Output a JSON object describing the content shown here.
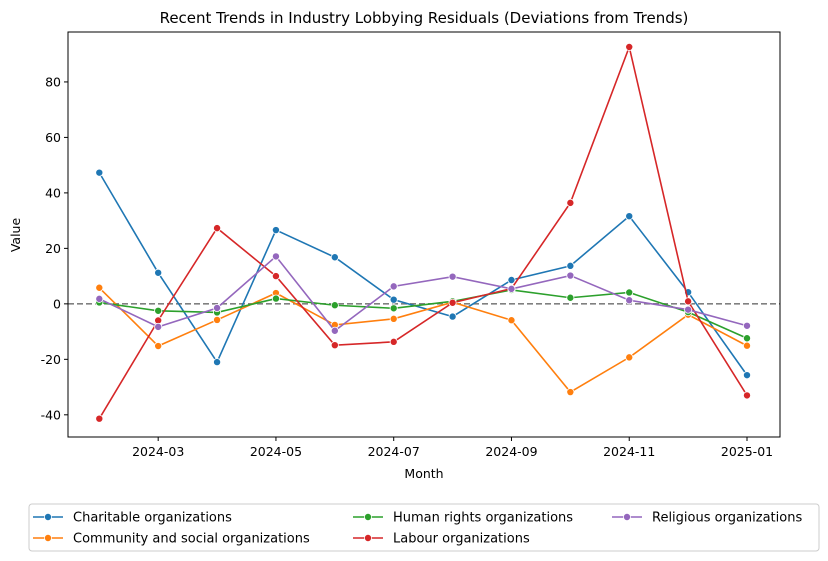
{
  "chart_data": {
    "type": "line",
    "title": "Recent Trends in Industry Lobbying Residuals (Deviations from Trends)",
    "xlabel": "Month",
    "ylabel": "Value",
    "x": [
      "2024-02",
      "2024-03",
      "2024-04",
      "2024-05",
      "2024-06",
      "2024-07",
      "2024-08",
      "2024-09",
      "2024-10",
      "2024-11",
      "2024-12",
      "2025-01"
    ],
    "x_tick_labels": [
      "2024-03",
      "2024-05",
      "2024-07",
      "2024-09",
      "2024-11",
      "2025-01"
    ],
    "y_ticks": [
      -40,
      -20,
      0,
      20,
      40,
      60,
      80
    ],
    "ylim": [
      -48,
      98
    ],
    "reference_line": 0,
    "grid": false,
    "legend_position": "below",
    "series": [
      {
        "name": "Charitable organizations",
        "color": "#1f77b4",
        "values": [
          47.3,
          11.2,
          -21.0,
          26.6,
          16.8,
          1.5,
          -4.6,
          8.6,
          13.7,
          31.6,
          4.2,
          -25.7
        ]
      },
      {
        "name": "Community and social organizations",
        "color": "#ff7f0e",
        "values": [
          5.8,
          -15.2,
          -5.8,
          3.9,
          -7.6,
          -5.4,
          0.6,
          -5.9,
          -31.8,
          -19.3,
          -3.9,
          -15.1
        ]
      },
      {
        "name": "Human rights organizations",
        "color": "#2ca02c",
        "values": [
          0.5,
          -2.5,
          -3.1,
          1.9,
          -0.5,
          -1.6,
          0.9,
          5.0,
          2.2,
          4.1,
          -3.0,
          -12.4
        ]
      },
      {
        "name": "Labour organizations",
        "color": "#d62728",
        "values": [
          -41.4,
          -6.0,
          27.3,
          10.0,
          -14.9,
          -13.7,
          0.4,
          5.5,
          36.4,
          92.6,
          0.9,
          -33.0
        ]
      },
      {
        "name": "Religious organizations",
        "color": "#9467bd",
        "values": [
          1.8,
          -8.3,
          -1.5,
          17.1,
          -9.7,
          6.3,
          9.8,
          5.4,
          10.2,
          1.3,
          -2.1,
          -7.9
        ]
      }
    ]
  }
}
